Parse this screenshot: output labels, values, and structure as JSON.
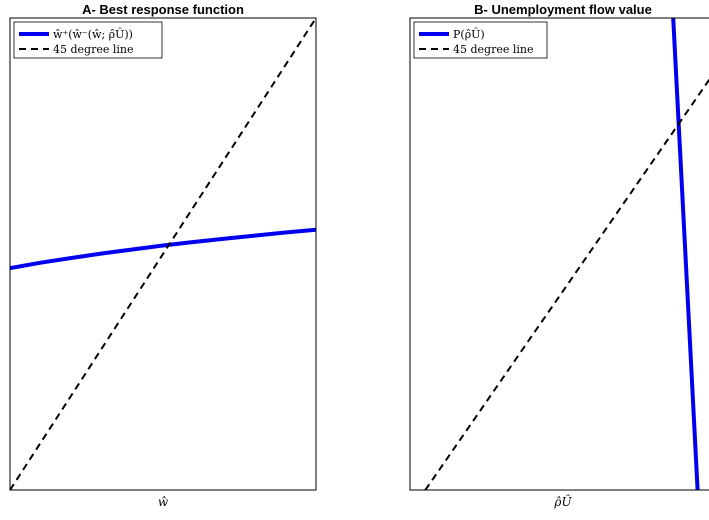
{
  "chart_data": [
    {
      "type": "line",
      "title": "A- Best response function",
      "xlabel": "ŵ",
      "ylabel": "",
      "xlim": [
        0,
        1
      ],
      "ylim": [
        0,
        1
      ],
      "grid": false,
      "legend_position": "top-left",
      "axis_ticks": false,
      "series": [
        {
          "name": "ŵ⁺(ŵ⁻(ŵ; ρ̂Û))",
          "color": "#0000ee",
          "style": "solid",
          "x": [
            0.0,
            0.1,
            0.2,
            0.3,
            0.4,
            0.5,
            0.6,
            0.7,
            0.8,
            0.9,
            1.0
          ],
          "y": [
            0.47,
            0.4815,
            0.4915,
            0.501,
            0.5095,
            0.518,
            0.5255,
            0.5325,
            0.539,
            0.5455,
            0.5515
          ]
        },
        {
          "name": "45 degree line",
          "color": "#000000",
          "style": "dashed",
          "x": [
            0.0,
            1.0
          ],
          "y": [
            0.0,
            1.0
          ]
        }
      ]
    },
    {
      "type": "line",
      "title": "B- Unemployment flow value",
      "xlabel": "ρ̂Û",
      "ylabel": "",
      "xlim": [
        0,
        1
      ],
      "ylim": [
        0,
        1
      ],
      "grid": false,
      "legend_position": "top-left",
      "axis_ticks": false,
      "series": [
        {
          "name": "P(ρ̂Û)",
          "color": "#0000ee",
          "style": "solid",
          "x": [
            0.86,
            0.94
          ],
          "y": [
            1.0,
            0.0
          ]
        },
        {
          "name": "45 degree line",
          "color": "#000000",
          "style": "dashed",
          "x": [
            0.05,
            1.0
          ],
          "y": [
            0.0,
            0.89
          ]
        }
      ]
    }
  ]
}
